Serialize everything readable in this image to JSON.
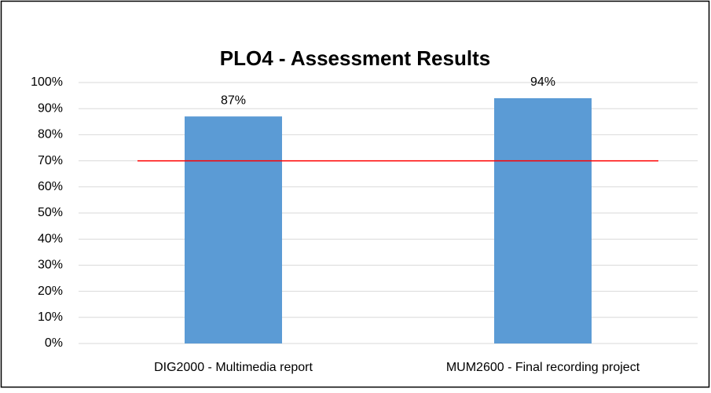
{
  "chart_data": {
    "type": "bar",
    "title": "PLO4 - Assessment Results",
    "categories": [
      "DIG2000 - Multimedia report",
      "MUM2600 - Final recording project"
    ],
    "values": [
      87,
      94
    ],
    "value_labels": [
      "87%",
      "94%"
    ],
    "color": "#5b9bd5",
    "ylim": [
      0,
      100
    ],
    "yticks": [
      {
        "value": 0,
        "label": "0%"
      },
      {
        "value": 10,
        "label": "10%"
      },
      {
        "value": 20,
        "label": "20%"
      },
      {
        "value": 30,
        "label": "30%"
      },
      {
        "value": 40,
        "label": "40%"
      },
      {
        "value": 50,
        "label": "50%"
      },
      {
        "value": 60,
        "label": "60%"
      },
      {
        "value": 70,
        "label": "70%"
      },
      {
        "value": 80,
        "label": "80%"
      },
      {
        "value": 90,
        "label": "90%"
      },
      {
        "value": 100,
        "label": "100%"
      }
    ],
    "grid": true,
    "reference_line": {
      "value": 70,
      "color": "#ff0000"
    }
  }
}
